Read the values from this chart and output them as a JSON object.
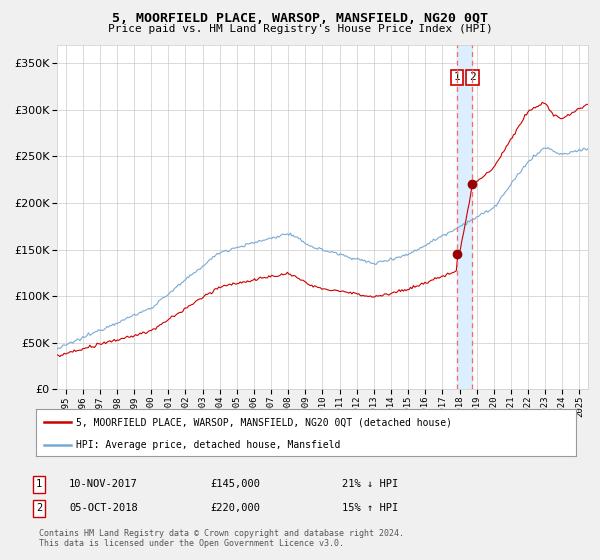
{
  "title": "5, MOORFIELD PLACE, WARSOP, MANSFIELD, NG20 0QT",
  "subtitle": "Price paid vs. HM Land Registry's House Price Index (HPI)",
  "legend_line1": "5, MOORFIELD PLACE, WARSOP, MANSFIELD, NG20 0QT (detached house)",
  "legend_line2": "HPI: Average price, detached house, Mansfield",
  "annotation1_num": "1",
  "annotation1_date": "10-NOV-2017",
  "annotation1_price": "£145,000",
  "annotation1_hpi": "21% ↓ HPI",
  "annotation2_num": "2",
  "annotation2_date": "05-OCT-2018",
  "annotation2_price": "£220,000",
  "annotation2_hpi": "15% ↑ HPI",
  "footer": "Contains HM Land Registry data © Crown copyright and database right 2024.\nThis data is licensed under the Open Government Licence v3.0.",
  "sale1_year": 2017.86,
  "sale1_value": 145000,
  "sale2_year": 2018.75,
  "sale2_value": 220000,
  "hpi_color": "#7aaad4",
  "price_color": "#cc0000",
  "vline_color": "#ff6666",
  "shade_color": "#ddeeff",
  "background_color": "#f0f0f0",
  "plot_bg_color": "#ffffff",
  "ylim": [
    0,
    370000
  ],
  "xlim_start": 1994.5,
  "xlim_end": 2025.5,
  "grid_color": "#cccccc"
}
